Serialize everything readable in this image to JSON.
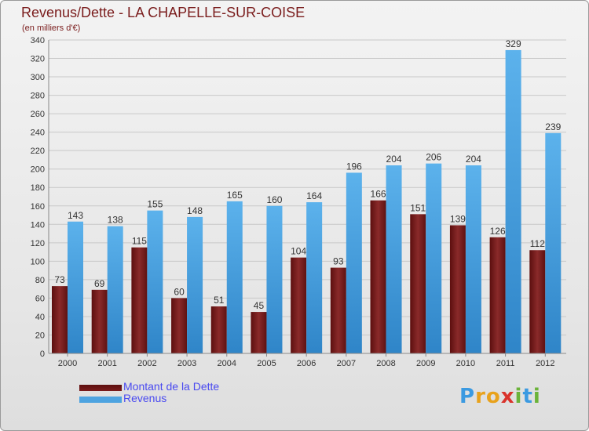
{
  "header": {
    "title": "Revenus/Dette - LA CHAPELLE-SUR-COISE",
    "subtitle": "(en milliers d'€)"
  },
  "colors": {
    "dette": "#7a1a1a",
    "revenus": "#4da3e0",
    "axis_text": "#333333",
    "grid": "#c8c8c8"
  },
  "chart_data": {
    "type": "bar",
    "title": "Revenus/Dette - LA CHAPELLE-SUR-COISE",
    "subtitle": "(en milliers d'€)",
    "xlabel": "",
    "ylabel": "",
    "ylim": [
      0,
      340
    ],
    "yticks": [
      0,
      20,
      40,
      60,
      80,
      100,
      120,
      140,
      160,
      180,
      200,
      220,
      240,
      260,
      280,
      300,
      320,
      340
    ],
    "grid": true,
    "legend_position": "bottom-left",
    "categories": [
      "2000",
      "2001",
      "2002",
      "2003",
      "2004",
      "2005",
      "2006",
      "2007",
      "2008",
      "2009",
      "2010",
      "2011",
      "2012"
    ],
    "series": [
      {
        "name": "Montant de la Dette",
        "values": [
          73,
          69,
          115,
          60,
          51,
          45,
          104,
          93,
          166,
          151,
          139,
          126,
          112
        ]
      },
      {
        "name": "Revenus",
        "values": [
          143,
          138,
          155,
          148,
          165,
          160,
          164,
          196,
          204,
          206,
          204,
          329,
          239
        ]
      }
    ]
  },
  "legend": {
    "items": [
      {
        "label": "Montant de la Dette"
      },
      {
        "label": "Revenus"
      }
    ]
  },
  "logo": {
    "letters": [
      "P",
      "r",
      "o",
      "x",
      "i",
      "t",
      "i"
    ],
    "colors": [
      "#3b9ae1",
      "#e8a21c",
      "#e8a21c",
      "#d9332b",
      "#6bb33a",
      "#3b9ae1",
      "#6bb33a"
    ]
  }
}
